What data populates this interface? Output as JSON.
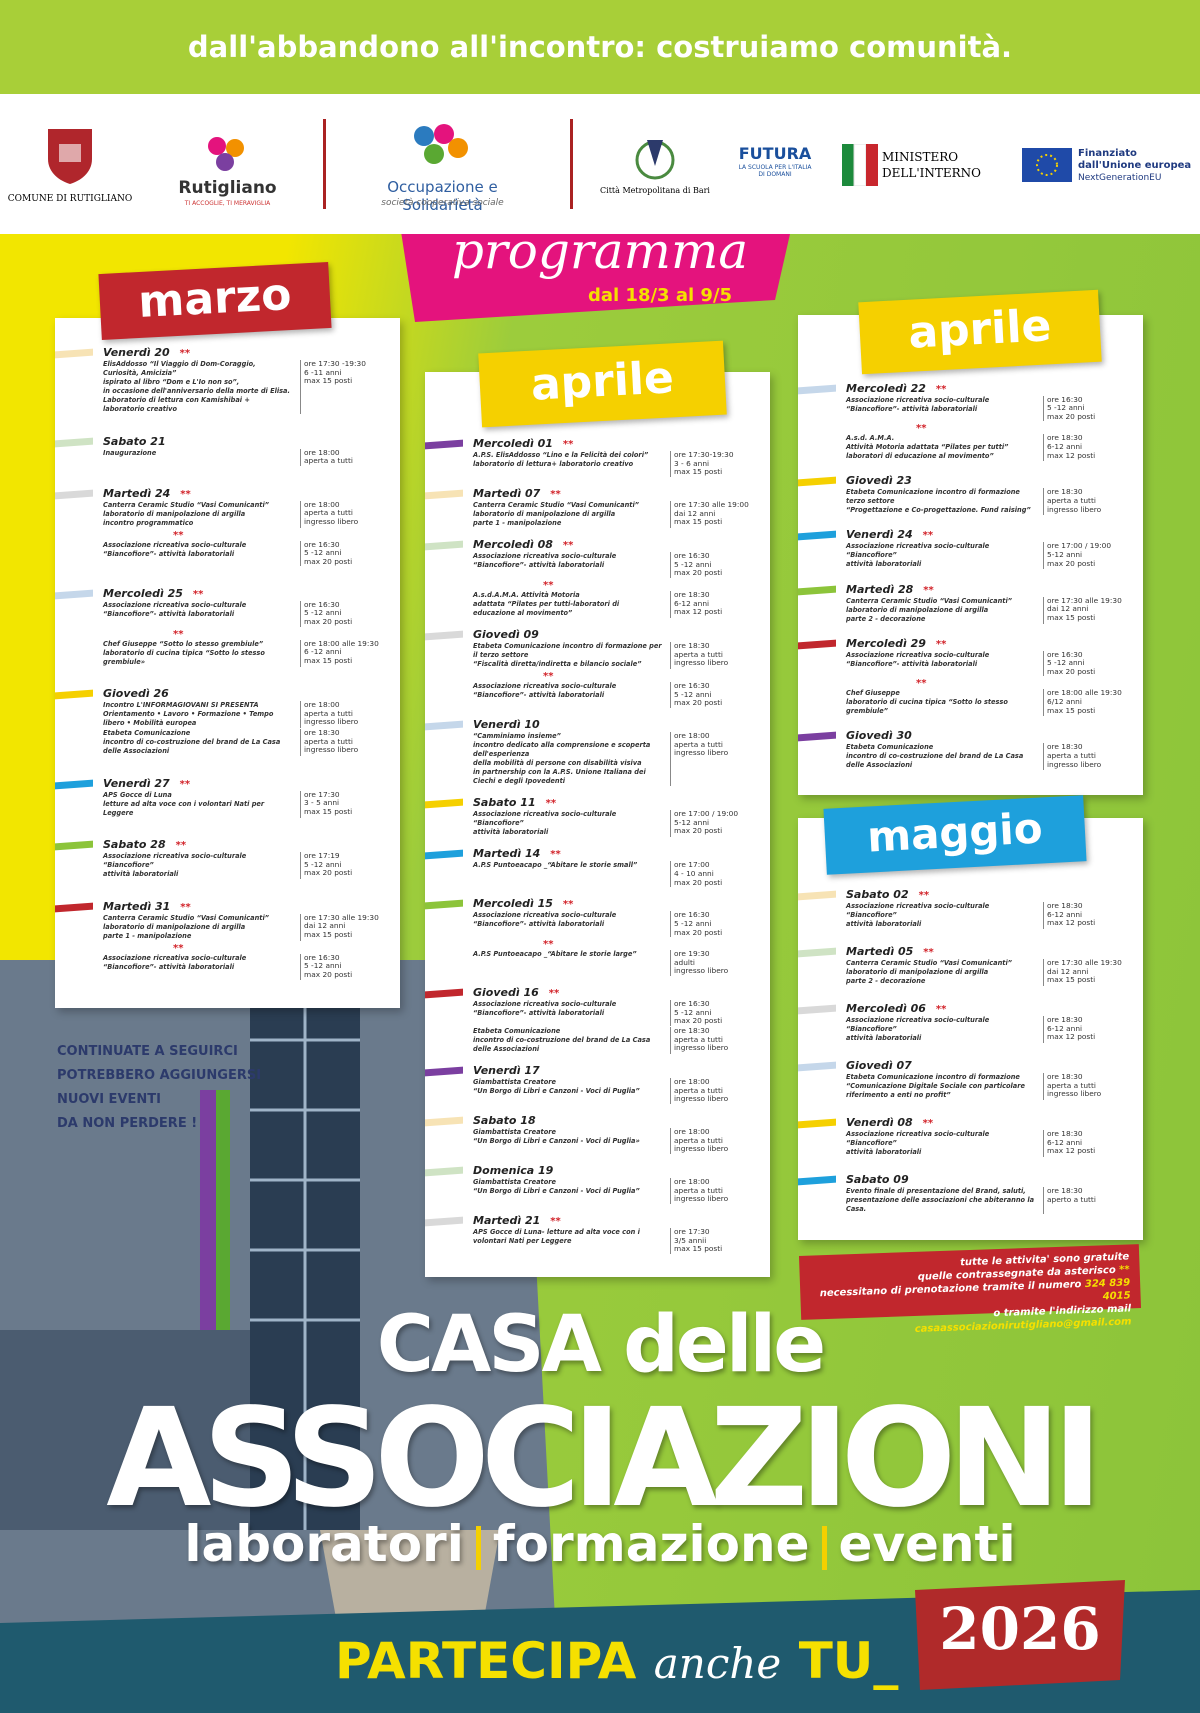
{
  "banner": "dall'abbandono all'incontro: costruiamo comunità.",
  "logos": {
    "comune": "COMUNE DI RUTIGLIANO",
    "rutigliano": "Rutigliano",
    "rutigliano_motto": "TI ACCOGLIE, TI MERAVIGLIA",
    "coop": "Occupazione e Solidarietà",
    "coop_sub": "società cooperativa sociale",
    "metro": "Città Metropolitana di Bari",
    "futura": "FUTURA",
    "futura_sub": "LA SCUOLA PER L'ITALIA DI DOMANI",
    "ministero_1": "MINISTERO",
    "ministero_2": "DELL'INTERNO",
    "eu_1": "Finanziato",
    "eu_2": "dall'Unione europea",
    "eu_3": "NextGenerationEU"
  },
  "programma": {
    "title": "programma",
    "dates": "dal 18/3 al 9/5"
  },
  "schedule": [
    {
      "month": "marzo",
      "events": [
        {
          "day": "Venerdì 20",
          "items": [
            {
              "stars": "**",
              "text": [
                "ElisAddosso “Il Viaggio di Dom-Coraggio, Curiosità, Amicizia”",
                "ispirato al libro “Dom e L'Io non so”,",
                "in occasione dell'anniversario della morte di Elisa.",
                "Laboratorio di lettura con Kamishibai + laboratorio creativo"
              ],
              "info": [
                "ore 17:30 -19:30",
                "6 -11 anni",
                "max 15 posti"
              ]
            }
          ]
        },
        {
          "day": "Sabato 21",
          "items": [
            {
              "text": [
                "Inaugurazione"
              ],
              "info": [
                "ore 18:00",
                "aperta a tutti"
              ]
            }
          ]
        },
        {
          "day": "Martedì 24",
          "items": [
            {
              "stars": "**",
              "text": [
                "Canterra Ceramic Studio “Vasi Comunicanti”",
                "laboratorio di manipolazione di argilla",
                "incontro programmatico"
              ],
              "info": [
                "ore 18:00",
                "aperta a tutti",
                "ingresso libero"
              ]
            },
            {
              "stars": "**",
              "text": [
                "Associazione ricreativa socio-culturale “Biancofiore”- attività laboratoriali"
              ],
              "info": [
                "ore 16:30",
                "5 -12 anni",
                "max 20 posti"
              ]
            }
          ]
        },
        {
          "day": "Mercoledì 25",
          "items": [
            {
              "stars": "**",
              "text": [
                "Associazione ricreativa socio-culturale “Biancofiore”- attività laboratoriali"
              ],
              "info": [
                "ore 16:30",
                "5 -12 anni",
                "max 20 posti"
              ]
            },
            {
              "stars": "**",
              "text": [
                "Chef Giuseppe “Sotto lo stesso grembiule”",
                "laboratorio di cucina tipica “Sotto lo stesso grembiule»"
              ],
              "info": [
                "ore 18:00 alle 19:30",
                "6 -12 anni",
                "max 15 posti"
              ]
            }
          ]
        },
        {
          "day": "Giovedì 26",
          "items": [
            {
              "text": [
                "Incontro L'INFORMAGIOVANI SI PRESENTA",
                "Orientamento • Lavoro • Formazione • Tempo libero • Mobilità europea"
              ],
              "info": [
                "ore 18:00",
                "aperta a tutti",
                "ingresso libero"
              ]
            },
            {
              "text": [
                "Etabeta Comunicazione",
                "incontro di co-costruzione del brand de La Casa delle Associazioni"
              ],
              "info": [
                "ore 18:30",
                "aperta a tutti",
                "ingresso libero"
              ]
            }
          ]
        },
        {
          "day": "Venerdì 27",
          "items": [
            {
              "stars": "**",
              "text": [
                "APS Gocce di Luna",
                "letture ad alta voce con i volontari Nati per Leggere"
              ],
              "info": [
                "ore 17:30",
                "3 - 5 anni",
                "max 15 posti"
              ]
            }
          ]
        },
        {
          "day": "Sabato 28",
          "items": [
            {
              "stars": "**",
              "text": [
                "Associazione ricreativa socio-culturale “Biancofiore”",
                "attività laboratoriali"
              ],
              "info": [
                "ore 17:19",
                "5 -12 anni",
                "max 20 posti"
              ]
            }
          ]
        },
        {
          "day": "Martedì 31",
          "items": [
            {
              "stars": "**",
              "text": [
                "Canterra Ceramic Studio “Vasi Comunicanti”",
                "laboratorio di manipolazione di argilla",
                "parte 1 - manipolazione"
              ],
              "info": [
                "ore 17:30 alle 19:30",
                "dai 12 anni",
                "max 15 posti"
              ]
            },
            {
              "stars": "**",
              "text": [
                "Associazione ricreativa socio-culturale “Biancofiore”- attività laboratoriali"
              ],
              "info": [
                "ore 16:30",
                "5 -12 anni",
                "max 20 posti"
              ]
            }
          ]
        }
      ]
    },
    {
      "month": "aprile",
      "events": [
        {
          "day": "Mercoledì 01",
          "items": [
            {
              "stars": "**",
              "text": [
                "A.P.S. ElisAddosso “Lino e la Felicità dei colori”",
                "laboratorio di lettura+ laboratorio creativo"
              ],
              "info": [
                "ore 17:30-19:30",
                "3 - 6 anni",
                "max 15 posti"
              ]
            }
          ]
        },
        {
          "day": "Martedì 07",
          "items": [
            {
              "stars": "**",
              "text": [
                "Canterra Ceramic Studio “Vasi Comunicanti”",
                "laboratorio di manipolazione di argilla",
                "parte 1 - manipolazione"
              ],
              "info": [
                "ore 17:30 alle 19:00",
                "dai 12 anni",
                "max 15 posti"
              ]
            }
          ]
        },
        {
          "day": "Mercoledì 08",
          "items": [
            {
              "stars": "**",
              "text": [
                "Associazione ricreativa socio-culturale “Biancofiore”- attività laboratoriali"
              ],
              "info": [
                "ore 16:30",
                "5 -12 anni",
                "max 20 posti"
              ]
            },
            {
              "stars": "**",
              "text": [
                "A.s.d.A.M.A. Attività Motoria",
                "adattata “Pilates per tutti-laboratori di educazione al movimento”"
              ],
              "info": [
                "ore 18:30",
                "6-12 anni",
                "max 12 posti"
              ]
            }
          ]
        },
        {
          "day": "Giovedì 09",
          "items": [
            {
              "text": [
                "Etabeta Comunicazione incontro di formazione per il terzo settore",
                "“Fiscalità diretta/indiretta e bilancio sociale”"
              ],
              "info": [
                "ore 18:30",
                "aperta a tutti",
                "ingresso libero"
              ]
            },
            {
              "stars": "**",
              "text": [
                "Associazione ricreativa socio-culturale “Biancofiore”- attività laboratoriali"
              ],
              "info": [
                "ore 16:30",
                "5 -12 anni",
                "max 20 posti"
              ]
            }
          ]
        },
        {
          "day": "Venerdì 10",
          "items": [
            {
              "text": [
                "“Camminiamo insieme”",
                "incontro dedicato alla comprensione e scoperta dell'esperienza",
                "della mobilità di persone con disabilità visiva",
                "in partnership con la A.P.S. Unione Italiana dei Ciechi e degli Ipovedenti"
              ],
              "info": [
                "ore 18:00",
                "aperta a tutti",
                "ingresso libero"
              ]
            }
          ]
        },
        {
          "day": "Sabato 11",
          "items": [
            {
              "stars": "**",
              "text": [
                "Associazione ricreativa socio-culturale “Biancofiore”",
                "attività laboratoriali"
              ],
              "info": [
                "ore 17:00 / 19:00",
                "5-12 anni",
                "max 20 posti"
              ]
            }
          ]
        },
        {
          "day": "Martedì 14",
          "items": [
            {
              "stars": "**",
              "text": [
                "A.P.S Puntoeacapo _“Abitare le storie small”"
              ],
              "info": [
                "ore 17:00",
                "4 - 10 anni",
                "max 20 posti"
              ]
            }
          ]
        },
        {
          "day": "Mercoledì 15",
          "items": [
            {
              "stars": "**",
              "text": [
                "Associazione ricreativa socio-culturale “Biancofiore”- attività laboratoriali"
              ],
              "info": [
                "ore 16:30",
                "5 -12 anni",
                "max 20 posti"
              ]
            },
            {
              "stars": "**",
              "text": [
                "A.P.S Puntoeacapo _“Abitare le storie large”"
              ],
              "info": [
                "ore 19:30",
                "adulti",
                "ingresso libero"
              ]
            }
          ]
        },
        {
          "day": "Giovedì 16",
          "items": [
            {
              "stars": "**",
              "text": [
                "Associazione ricreativa socio-culturale “Biancofiore”- attività laboratoriali"
              ],
              "info": [
                "ore 16:30",
                "5 -12 anni",
                "max 20 posti"
              ]
            },
            {
              "text": [
                "Etabeta Comunicazione",
                "incontro di co-costruzione del brand de La Casa delle Associazioni"
              ],
              "info": [
                "ore 18:30",
                "aperta a tutti",
                "ingresso libero"
              ]
            }
          ]
        },
        {
          "day": "Venerdì 17",
          "items": [
            {
              "text": [
                "Giambattista Creatore",
                "“Un Borgo di Libri e Canzoni - Voci di Puglia”"
              ],
              "info": [
                "ore 18:00",
                "aperta a tutti",
                "ingresso libero"
              ]
            }
          ]
        },
        {
          "day": "Sabato 18",
          "items": [
            {
              "text": [
                "Giambattista Creatore",
                "“Un Borgo di Libri e Canzoni - Voci di Puglia»"
              ],
              "info": [
                "ore 18:00",
                "aperta a tutti",
                "ingresso libero"
              ]
            }
          ]
        },
        {
          "day": "Domenica 19",
          "items": [
            {
              "text": [
                "Giambattista Creatore",
                "“Un Borgo di Libri e Canzoni - Voci di Puglia”"
              ],
              "info": [
                "ore 18:00",
                "aperta a tutti",
                "ingresso libero"
              ]
            }
          ]
        },
        {
          "day": "Martedì 21",
          "items": [
            {
              "stars": "**",
              "text": [
                "APS Gocce di Luna- letture ad alta voce con i volontari Nati per Leggere"
              ],
              "info": [
                "ore 17:30",
                "3/5 annii",
                "max 15 posti"
              ]
            }
          ]
        }
      ]
    },
    {
      "month": "aprile",
      "events": [
        {
          "day": "Mercoledì 22",
          "items": [
            {
              "stars": "**",
              "text": [
                "Associazione ricreativa socio-culturale “Biancofiore”- attività laboratoriali"
              ],
              "info": [
                "ore 16:30",
                "5 -12 anni",
                "max 20 posti"
              ]
            },
            {
              "stars": "**",
              "text": [
                "A.s.d. A.M.A.",
                "Attività Motoria adattata “Pilates per tutti”",
                "laboratori di educazione al movimento”"
              ],
              "info": [
                "ore 18:30",
                "6-12 anni",
                "max 12 posti"
              ]
            }
          ]
        },
        {
          "day": "Giovedì 23",
          "items": [
            {
              "text": [
                "Etabeta Comunicazione incontro di formazione terzo settore",
                "“Progettazione e Co-progettazione. Fund raising”"
              ],
              "info": [
                "ore 18:30",
                "aperta a tutti",
                "ingresso libero"
              ]
            }
          ]
        },
        {
          "day": "Venerdì 24",
          "items": [
            {
              "stars": "**",
              "text": [
                "Associazione ricreativa socio-culturale “Biancofiore”",
                "attività laboratoriali"
              ],
              "info": [
                "ore 17:00 / 19:00",
                "5-12 anni",
                "max 20 posti"
              ]
            }
          ]
        },
        {
          "day": "Martedì 28",
          "items": [
            {
              "stars": "**",
              "text": [
                "Canterra Ceramic Studio “Vasi Comunicanti”",
                "laboratorio di manipolazione di argilla",
                "parte 2 - decorazione"
              ],
              "info": [
                "ore 17:30 alle 19:30",
                "dai 12 anni",
                "max 15 posti"
              ]
            }
          ]
        },
        {
          "day": "Mercoledì 29",
          "items": [
            {
              "stars": "**",
              "text": [
                "Associazione ricreativa socio-culturale “Biancofiore”- attività laboratoriali"
              ],
              "info": [
                "ore 16:30",
                "5 -12 anni",
                "max 20 posti"
              ]
            },
            {
              "stars": "**",
              "text": [
                "Chef Giuseppe",
                "laboratorio di cucina tipica “Sotto lo stesso grembiule”"
              ],
              "info": [
                "ore 18:00 alle 19:30",
                "6/12 anni",
                "max 15 posti"
              ]
            }
          ]
        },
        {
          "day": "Giovedì 30",
          "items": [
            {
              "text": [
                "Etabeta Comunicazione",
                "incontro di co-costruzione del brand de La Casa delle Associazioni"
              ],
              "info": [
                "ore 18:30",
                "aperta a tutti",
                "ingresso libero"
              ]
            }
          ]
        }
      ]
    },
    {
      "month": "maggio",
      "events": [
        {
          "day": "Sabato 02",
          "items": [
            {
              "stars": "**",
              "text": [
                "Associazione ricreativa socio-culturale “Biancofiore”",
                "attività laboratoriali"
              ],
              "info": [
                "ore 18:30",
                "6-12 anni",
                "max 12 posti"
              ]
            }
          ]
        },
        {
          "day": "Martedì 05",
          "items": [
            {
              "stars": "**",
              "text": [
                "Canterra Ceramic Studio “Vasi Comunicanti”",
                "laboratorio di manipolazione di argilla",
                "parte 2 - decorazione"
              ],
              "info": [
                "ore 17:30 alle 19:30",
                "dai 12 anni",
                "max 15 posti"
              ]
            }
          ]
        },
        {
          "day": "Mercoledì 06",
          "items": [
            {
              "stars": "**",
              "text": [
                "Associazione ricreativa socio-culturale “Biancofiore”",
                "attività laboratoriali"
              ],
              "info": [
                "ore 18:30",
                "6-12 anni",
                "max 12 posti"
              ]
            }
          ]
        },
        {
          "day": "Giovedì 07",
          "items": [
            {
              "text": [
                "Etabeta Comunicazione incontro di formazione",
                "“Comunicazione Digitale Sociale con particolare riferimento a enti no profit”"
              ],
              "info": [
                "ore 18:30",
                "aperta a tutti",
                "ingresso libero"
              ]
            }
          ]
        },
        {
          "day": "Venerdì 08",
          "items": [
            {
              "stars": "**",
              "text": [
                "Associazione ricreativa socio-culturale “Biancofiore”",
                "attività laboratoriali"
              ],
              "info": [
                "ore 18:30",
                "6-12 anni",
                "max 12 posti"
              ]
            }
          ]
        },
        {
          "day": "Sabato 09",
          "items": [
            {
              "text": [
                "Evento finale di presentazione del Brand, saluti,",
                "presentazione delle associazioni che abiteranno la Casa."
              ],
              "info": [
                "ore 18:30",
                "aperto a tutti"
              ]
            }
          ]
        }
      ]
    }
  ],
  "follow": [
    "CONTINUATE A SEGUIRCI",
    "POTREBBERO AGGIUNGERSI",
    "NUOVI EVENTI",
    "DA NON PERDERE !"
  ],
  "note": {
    "line1": "tutte le attivita' sono gratuite",
    "line2": "quelle contrassegnate da asterisco",
    "stars": "**",
    "line3": "necessitano di prenotazione tramite il numero",
    "phone": "324 839 4015",
    "line4": "o tramite l'indirizzo mail",
    "email": "casaassociazionirutigliano@gmail.com"
  },
  "title": {
    "line1": "CASA delle",
    "line2": "ASSOCIAZIONI",
    "tags": [
      "laboratori",
      "formazione",
      "eventi"
    ]
  },
  "footer": {
    "partecipa": "PARTECIPA",
    "anche": "anche",
    "tu": "TU_",
    "year": "2026"
  }
}
